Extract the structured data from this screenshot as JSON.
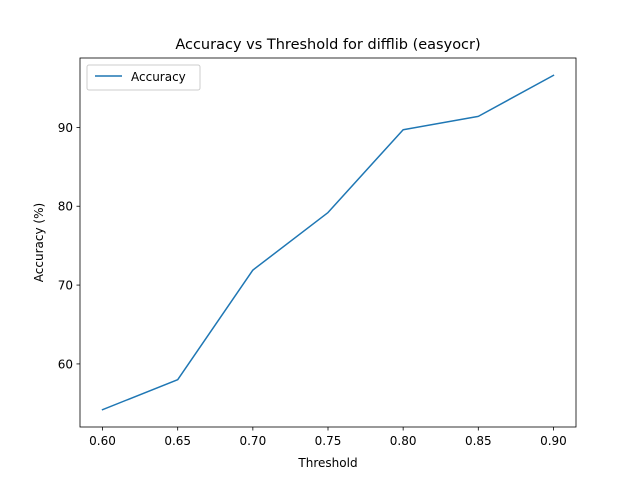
{
  "chart_data": {
    "type": "line",
    "title": "Accuracy vs Threshold for difflib (easyocr)",
    "xlabel": "Threshold",
    "ylabel": "Accuracy (%)",
    "x": [
      0.6,
      0.65,
      0.7,
      0.75,
      0.8,
      0.85,
      0.9
    ],
    "x_tick_labels": [
      "0.60",
      "0.65",
      "0.70",
      "0.75",
      "0.80",
      "0.85",
      "0.90"
    ],
    "y_ticks": [
      60,
      70,
      80,
      90
    ],
    "xlim": [
      0.585,
      0.915
    ],
    "ylim": [
      52.0,
      98.8
    ],
    "grid": false,
    "legend_position": "upper-left",
    "series": [
      {
        "name": "Accuracy",
        "color": "#1f77b4",
        "values": [
          54.2,
          58.0,
          71.9,
          79.2,
          89.7,
          91.4,
          96.6
        ]
      }
    ]
  }
}
